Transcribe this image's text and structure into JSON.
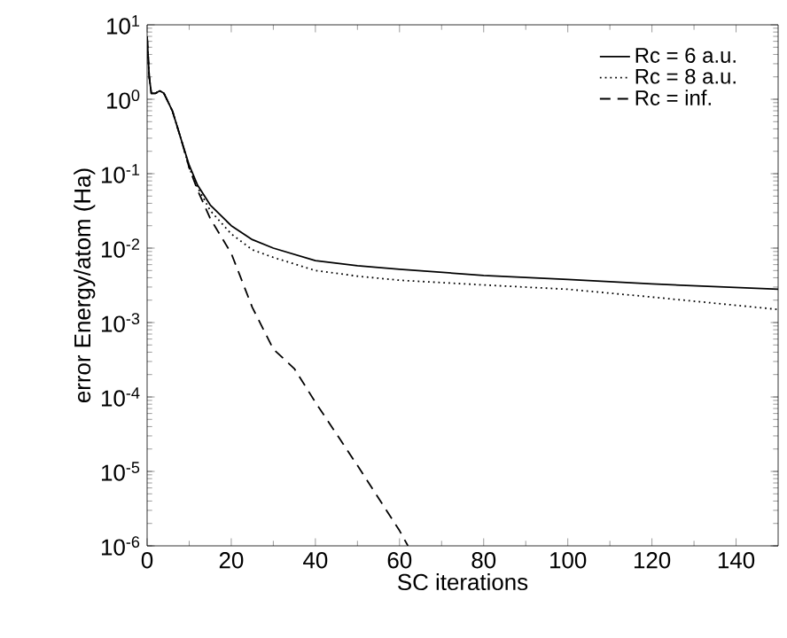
{
  "chart_data": {
    "type": "line",
    "xlabel": "SC iterations",
    "ylabel": "error Energy/atom (Ha)",
    "log": "y",
    "grid": false,
    "legend": "top right",
    "marker": "none",
    "xlim": [
      0,
      150
    ],
    "ylim": [
      1e-06,
      10
    ],
    "xticks": [
      0,
      20,
      40,
      60,
      80,
      100,
      120,
      140
    ],
    "yticks": [
      {
        "value": 1e-06,
        "label": "10$^{-6}$"
      },
      {
        "value": 1e-05,
        "label": "10$^{-5}$"
      },
      {
        "value": 0.0001,
        "label": "10$^{-4}$"
      },
      {
        "value": 0.001,
        "label": "10$^{-3}$"
      },
      {
        "value": 0.01,
        "label": "10$^{-2}$"
      },
      {
        "value": 0.1,
        "label": "10$^{-1}$"
      },
      {
        "value": 1,
        "label": "10$^{0}$"
      },
      {
        "value": 10,
        "label": "10$^{1}$"
      }
    ],
    "series": [
      {
        "name": "Rc = 6 a.u.",
        "color": "#000000",
        "line_style": "solid",
        "x": [
          0,
          0.5,
          1,
          2,
          3,
          4,
          6,
          8,
          10,
          12,
          15,
          20,
          25,
          30,
          40,
          50,
          60,
          80,
          100,
          120,
          150
        ],
        "values": [
          7,
          2,
          1.2,
          1.2,
          1.3,
          1.2,
          0.7,
          0.3,
          0.13,
          0.07,
          0.038,
          0.02,
          0.013,
          0.01,
          0.0068,
          0.0058,
          0.0052,
          0.0043,
          0.0038,
          0.0033,
          0.0028
        ]
      },
      {
        "name": "Rc = 8 a.u.",
        "color": "#000000",
        "line_style": "dotted",
        "x": [
          0,
          0.5,
          1,
          2,
          3,
          4,
          6,
          8,
          10,
          12,
          15,
          20,
          25,
          30,
          40,
          50,
          60,
          80,
          100,
          120,
          150
        ],
        "values": [
          7,
          2,
          1.2,
          1.2,
          1.3,
          1.2,
          0.7,
          0.3,
          0.12,
          0.065,
          0.032,
          0.0155,
          0.0095,
          0.0075,
          0.005,
          0.0042,
          0.0037,
          0.0032,
          0.0028,
          0.0022,
          0.0015
        ]
      },
      {
        "name": "Rc = inf.",
        "color": "#000000",
        "line_style": "dashed",
        "x": [
          0,
          0.5,
          1,
          2,
          3,
          4,
          6,
          8,
          10,
          12,
          15,
          20,
          25,
          30,
          35,
          40,
          50,
          60,
          62
        ],
        "values": [
          7,
          2,
          1.2,
          1.2,
          1.3,
          1.2,
          0.7,
          0.3,
          0.12,
          0.06,
          0.025,
          0.0085,
          0.0016,
          0.00044,
          0.00024,
          8.5e-05,
          1.2e-05,
          1.6e-06,
          1e-06
        ]
      }
    ]
  }
}
